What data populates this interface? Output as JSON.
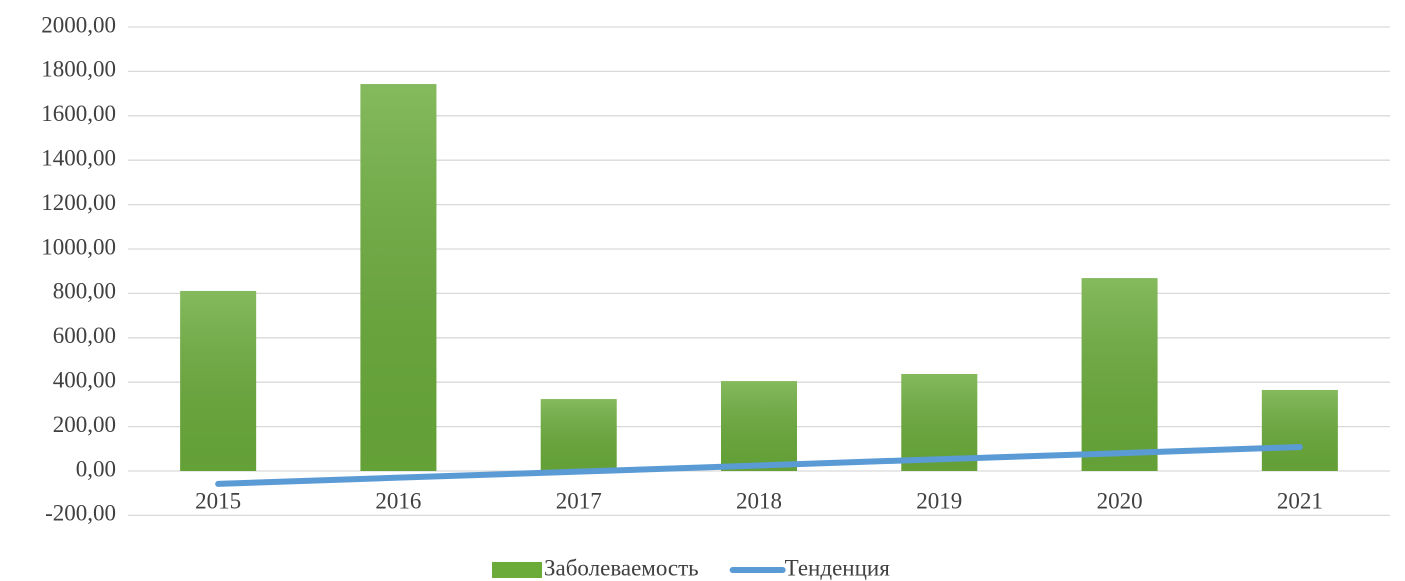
{
  "chart_data": {
    "type": "bar",
    "categories": [
      "2015",
      "2016",
      "2017",
      "2018",
      "2019",
      "2020",
      "2021"
    ],
    "series": [
      {
        "name": "Заболеваемость",
        "color": "#6aab3a",
        "type": "bar",
        "values": [
          811,
          1743,
          324,
          405,
          437,
          869,
          365
        ]
      },
      {
        "name": "Тенденция",
        "color": "#5b9bd5",
        "type": "line",
        "values": [
          -58,
          -30,
          -3,
          25,
          53,
          80,
          108
        ]
      }
    ],
    "ylim": [
      -200,
      2000
    ],
    "yticks": [
      {
        "value": -200,
        "label": "-200,00"
      },
      {
        "value": 0,
        "label": "0,00"
      },
      {
        "value": 200,
        "label": "200,00"
      },
      {
        "value": 400,
        "label": "400,00"
      },
      {
        "value": 600,
        "label": "600,00"
      },
      {
        "value": 800,
        "label": "800,00"
      },
      {
        "value": 1000,
        "label": "1000,00"
      },
      {
        "value": 1200,
        "label": "1200,00"
      },
      {
        "value": 1400,
        "label": "1400,00"
      },
      {
        "value": 1600,
        "label": "1600,00"
      },
      {
        "value": 1800,
        "label": "1800,00"
      },
      {
        "value": 2000,
        "label": "2000,00"
      }
    ],
    "grid": true,
    "legend": "bottom"
  }
}
